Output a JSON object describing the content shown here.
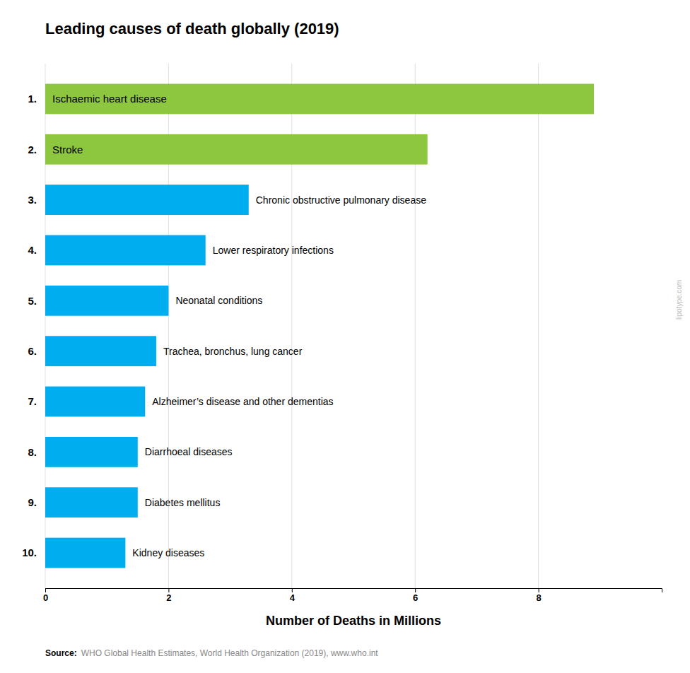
{
  "chart_data": {
    "type": "bar",
    "orientation": "horizontal",
    "title": "Leading causes of death globally (2019)",
    "xlabel": "Number of Deaths in Millions",
    "categories": [
      "Ischaemic heart disease",
      "Stroke",
      "Chronic obstructive pulmonary disease",
      "Lower respiratory infections",
      "Neonatal conditions",
      "Trachea, bronchus, lung cancer",
      "Alzheimer’s disease and other dementias",
      "Diarrhoeal diseases",
      "Diabetes mellitus",
      "Kidney diseases"
    ],
    "ranks": [
      "1.",
      "2.",
      "3.",
      "4.",
      "5.",
      "6.",
      "7.",
      "8.",
      "9.",
      "10."
    ],
    "values": [
      8.9,
      6.2,
      3.3,
      2.6,
      2.0,
      1.8,
      1.62,
      1.5,
      1.5,
      1.3
    ],
    "colors": [
      "#8DC63F",
      "#8DC63F",
      "#00AEEF",
      "#00AEEF",
      "#00AEEF",
      "#00AEEF",
      "#00AEEF",
      "#00AEEF",
      "#00AEEF",
      "#00AEEF"
    ],
    "xlim": [
      0,
      10
    ],
    "xticks": [
      0,
      2,
      4,
      6,
      8
    ],
    "grid": true,
    "source_label": "Source:",
    "source": "WHO Global Health Estimates, World Health Organization (2019), www.who.int",
    "watermark": "lipotype.com"
  }
}
